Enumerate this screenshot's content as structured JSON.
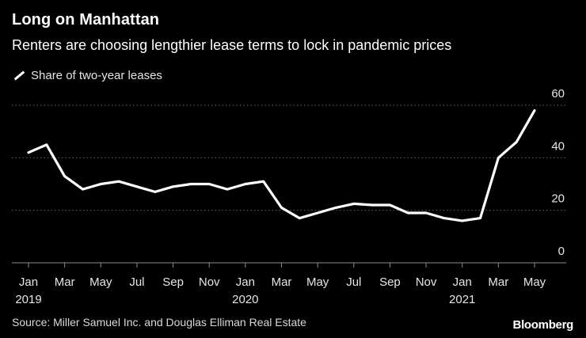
{
  "header": {
    "title": "Long on Manhattan",
    "subtitle": "Renters are choosing lengthier lease terms to lock in pandemic prices"
  },
  "footer": {
    "source": "Source: Miller Samuel Inc. and Douglas Elliman Real Estate",
    "brand": "Bloomberg"
  },
  "colors": {
    "background": "#000000",
    "line": "#ffffff",
    "grid": "#666666",
    "text": "#ffffff"
  },
  "chart_data": {
    "type": "line",
    "x": [
      "2019-01",
      "2019-02",
      "2019-03",
      "2019-04",
      "2019-05",
      "2019-06",
      "2019-07",
      "2019-08",
      "2019-09",
      "2019-10",
      "2019-11",
      "2019-12",
      "2020-01",
      "2020-02",
      "2020-03",
      "2020-04",
      "2020-05",
      "2020-06",
      "2020-07",
      "2020-08",
      "2020-09",
      "2020-10",
      "2020-11",
      "2020-12",
      "2021-01",
      "2021-02",
      "2021-03",
      "2021-04",
      "2021-05"
    ],
    "series": [
      {
        "name": "Share of two-year leases",
        "values": [
          42,
          45,
          33,
          28,
          30,
          31,
          29,
          27,
          29,
          30,
          30,
          28,
          30,
          31,
          21,
          17,
          19,
          21,
          22.5,
          22,
          22,
          19,
          19,
          17,
          16,
          17,
          40,
          46,
          58
        ]
      }
    ],
    "ylim": [
      0,
      60
    ],
    "yticks": [
      "0",
      "20",
      "40",
      "60"
    ],
    "xticks": [
      {
        "month": "Jan",
        "year": "2019",
        "index": 0
      },
      {
        "month": "Mar",
        "year": "",
        "index": 2
      },
      {
        "month": "May",
        "year": "",
        "index": 4
      },
      {
        "month": "Jul",
        "year": "",
        "index": 6
      },
      {
        "month": "Sep",
        "year": "",
        "index": 8
      },
      {
        "month": "Nov",
        "year": "",
        "index": 10
      },
      {
        "month": "Jan",
        "year": "2020",
        "index": 12
      },
      {
        "month": "Mar",
        "year": "",
        "index": 14
      },
      {
        "month": "May",
        "year": "",
        "index": 16
      },
      {
        "month": "Jul",
        "year": "",
        "index": 18
      },
      {
        "month": "Sep",
        "year": "",
        "index": 20
      },
      {
        "month": "Nov",
        "year": "",
        "index": 22
      },
      {
        "month": "Jan",
        "year": "2021",
        "index": 24
      },
      {
        "month": "Mar",
        "year": "",
        "index": 26
      },
      {
        "month": "May",
        "year": "",
        "index": 28
      }
    ],
    "grid": true,
    "legend": "top-left"
  }
}
